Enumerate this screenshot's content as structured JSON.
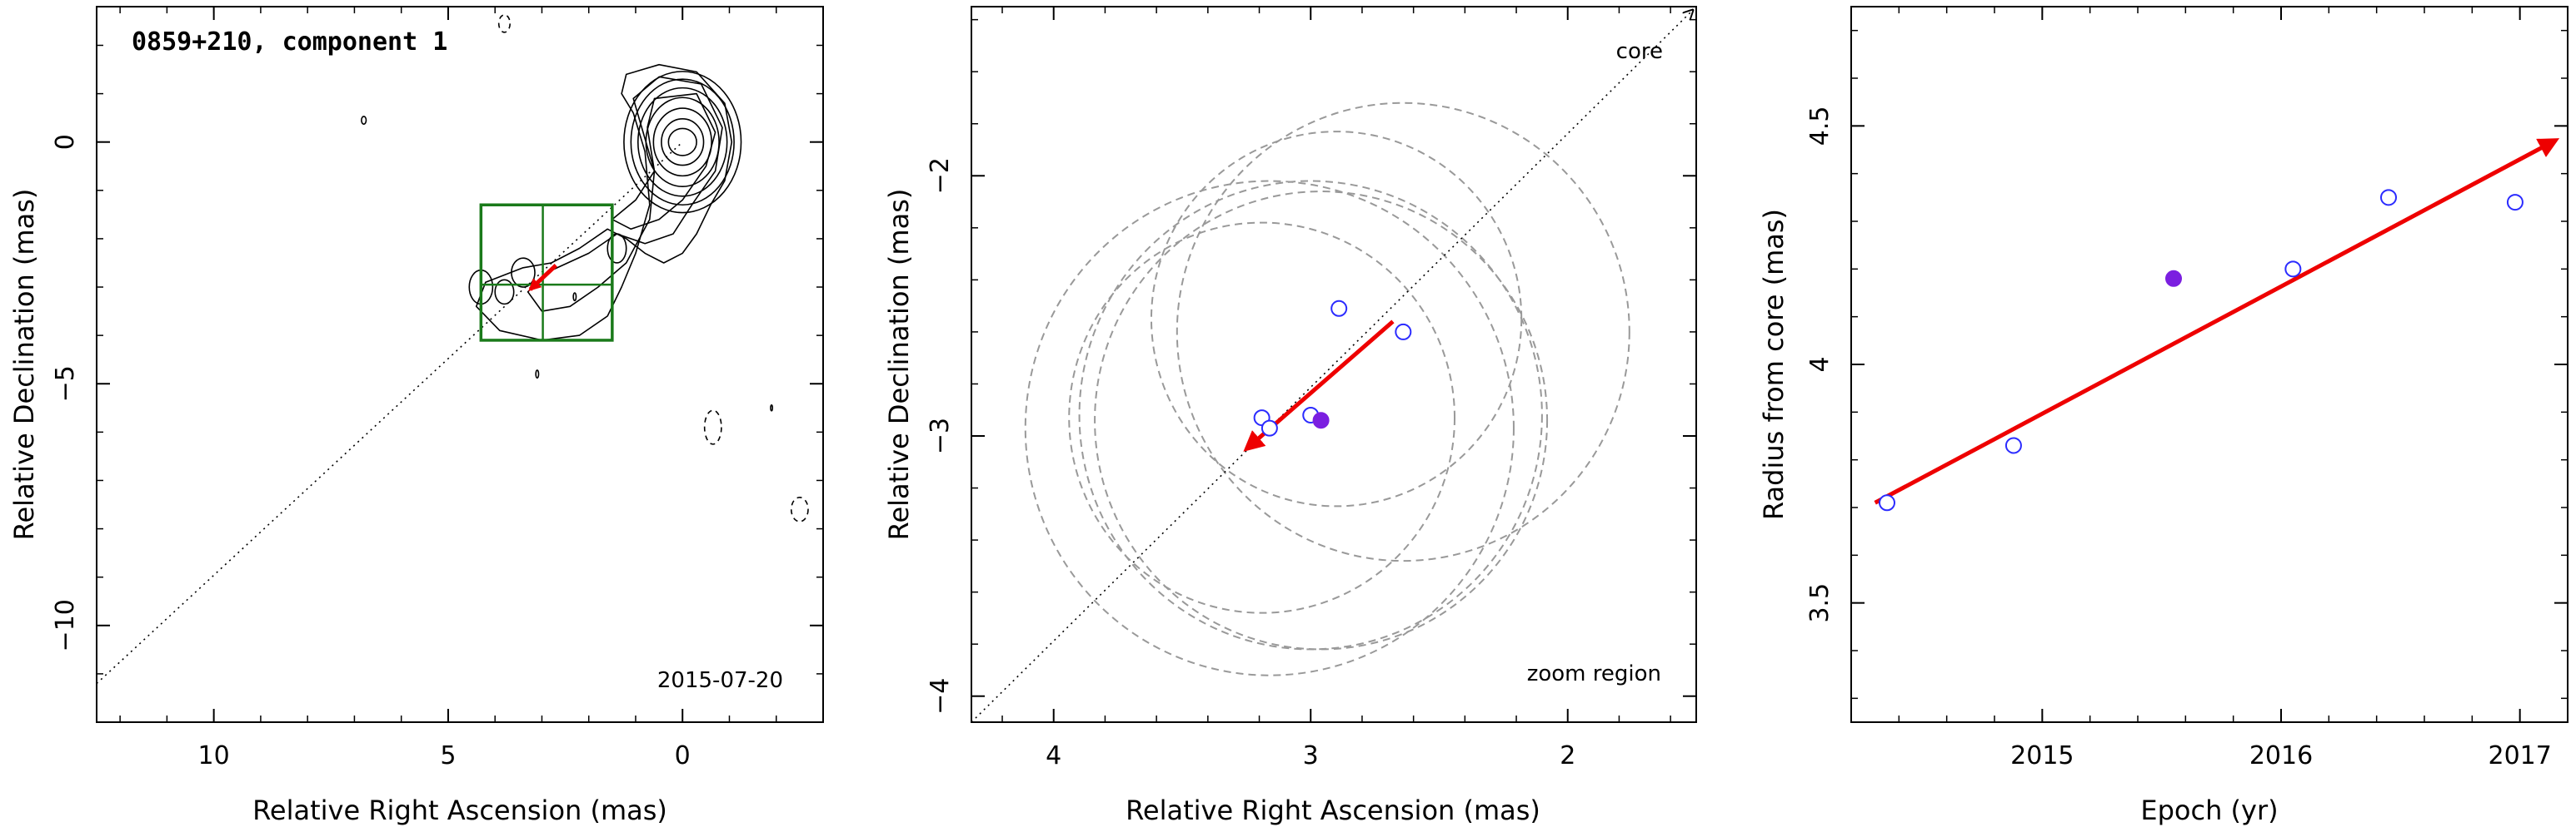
{
  "colors": {
    "axis": "#000000",
    "contour": "#000000",
    "zoom_box": "#1a7a1a",
    "arrow": "#ee0000",
    "epoch_open": "#2b2bff",
    "epoch_filled": "#7b1fe0",
    "circle": "#999999",
    "ridge": "#000000"
  },
  "chart_data": [
    {
      "type": "contour",
      "title": "0859+210, component 1",
      "annotation": "2015-07-20",
      "xlabel": "Relative Right Ascension (mas)",
      "ylabel": "Relative Declination (mas)",
      "xlim": [
        12.5,
        -3.0
      ],
      "ylim": [
        -12.0,
        2.8
      ],
      "x_ticks": [
        {
          "value": 10,
          "label": "10"
        },
        {
          "value": 5,
          "label": "5"
        },
        {
          "value": 0,
          "label": "0"
        }
      ],
      "y_ticks": [
        {
          "value": 0,
          "label": "0"
        },
        {
          "value": -5,
          "label": "−5"
        },
        {
          "value": -10,
          "label": "−10"
        }
      ],
      "core": [
        0,
        0
      ],
      "core_contours": [
        {
          "rx": 0.3,
          "ry": 0.28
        },
        {
          "rx": 0.45,
          "ry": 0.48
        },
        {
          "rx": 0.62,
          "ry": 0.7
        },
        {
          "rx": 0.78,
          "ry": 0.92
        },
        {
          "rx": 0.95,
          "ry": 1.12
        },
        {
          "rx": 1.1,
          "ry": 1.3
        },
        {
          "rx": 1.25,
          "ry": 1.46
        }
      ],
      "jet_contours": [
        [
          [
            1.05,
            0.6
          ],
          [
            1.3,
            1.0
          ],
          [
            1.2,
            1.4
          ],
          [
            0.5,
            1.6
          ],
          [
            -0.3,
            1.45
          ],
          [
            -0.9,
            0.8
          ],
          [
            -1.05,
            0.0
          ],
          [
            -0.9,
            -0.8
          ],
          [
            -0.6,
            -1.3
          ],
          [
            -0.3,
            -1.9
          ],
          [
            0.0,
            -2.3
          ],
          [
            0.4,
            -2.5
          ],
          [
            0.8,
            -2.3
          ],
          [
            1.2,
            -2.0
          ],
          [
            1.6,
            -1.8
          ],
          [
            2.2,
            -2.2
          ],
          [
            2.8,
            -2.5
          ],
          [
            3.4,
            -2.6
          ],
          [
            4.2,
            -2.9
          ],
          [
            4.4,
            -3.4
          ],
          [
            3.9,
            -3.9
          ],
          [
            3.0,
            -4.1
          ],
          [
            2.2,
            -4.0
          ],
          [
            1.6,
            -3.6
          ],
          [
            1.3,
            -3.0
          ],
          [
            1.0,
            -2.3
          ],
          [
            0.7,
            -1.3
          ],
          [
            0.8,
            -0.2
          ],
          [
            1.05,
            0.6
          ]
        ],
        [
          [
            0.9,
            0.4
          ],
          [
            1.05,
            0.9
          ],
          [
            0.5,
            1.35
          ],
          [
            -0.4,
            1.2
          ],
          [
            -0.85,
            0.3
          ],
          [
            -0.7,
            -0.6
          ],
          [
            -0.2,
            -1.3
          ],
          [
            0.2,
            -1.9
          ],
          [
            0.8,
            -2.1
          ],
          [
            1.4,
            -1.9
          ],
          [
            2.0,
            -2.3
          ],
          [
            2.9,
            -2.7
          ],
          [
            3.3,
            -3.1
          ],
          [
            3.0,
            -3.5
          ],
          [
            2.4,
            -3.4
          ],
          [
            1.8,
            -3.0
          ],
          [
            1.2,
            -2.5
          ],
          [
            0.7,
            -1.6
          ],
          [
            0.6,
            -0.6
          ],
          [
            0.9,
            0.4
          ]
        ],
        [
          [
            0.75,
            0.3
          ],
          [
            0.6,
            0.9
          ],
          [
            -0.3,
            1.0
          ],
          [
            -0.7,
            0.2
          ],
          [
            -0.5,
            -0.5
          ],
          [
            0.0,
            -1.2
          ],
          [
            0.5,
            -1.6
          ],
          [
            1.1,
            -1.8
          ],
          [
            1.5,
            -1.6
          ],
          [
            1.0,
            -1.2
          ],
          [
            0.6,
            -0.6
          ],
          [
            0.75,
            0.3
          ]
        ]
      ],
      "blobs": [
        {
          "x": 4.3,
          "y": -3.0,
          "rx": 0.25,
          "ry": 0.35,
          "dashed": false
        },
        {
          "x": 1.4,
          "y": -2.2,
          "rx": 0.2,
          "ry": 0.3,
          "dashed": false
        },
        {
          "x": 3.8,
          "y": -3.1,
          "rx": 0.2,
          "ry": 0.25,
          "dashed": false
        },
        {
          "x": 3.4,
          "y": -2.7,
          "rx": 0.25,
          "ry": 0.3,
          "dashed": false
        },
        {
          "x": 6.8,
          "y": 0.45,
          "rx": 0.05,
          "ry": 0.08,
          "dashed": false
        },
        {
          "x": 3.1,
          "y": -4.8,
          "rx": 0.03,
          "ry": 0.08,
          "dashed": false
        },
        {
          "x": 2.3,
          "y": -3.2,
          "rx": 0.03,
          "ry": 0.08,
          "dashed": false
        },
        {
          "x": 3.8,
          "y": 2.45,
          "rx": 0.12,
          "ry": 0.18,
          "dashed": true
        },
        {
          "x": -0.65,
          "y": -5.9,
          "rx": 0.18,
          "ry": 0.35,
          "dashed": true
        },
        {
          "x": -2.5,
          "y": -7.6,
          "rx": 0.18,
          "ry": 0.25,
          "dashed": true
        },
        {
          "x": -1.9,
          "y": -5.5,
          "rx": 0.02,
          "ry": 0.06,
          "dashed": false
        }
      ],
      "ridge_line": [
        [
          12.5,
          -11.2
        ],
        [
          0,
          0
        ]
      ],
      "zoom_box": {
        "x": [
          4.3,
          1.5
        ],
        "y": [
          -1.3,
          -4.1
        ]
      },
      "zoom_cross": {
        "x": 2.98,
        "y": -2.95
      },
      "arrow": {
        "from": [
          2.7,
          -2.55
        ],
        "to": [
          3.25,
          -3.05
        ]
      }
    },
    {
      "type": "scatter",
      "annotation": "zoom region",
      "core_label": "core",
      "xlabel": "Relative Right Ascension (mas)",
      "ylabel": "Relative Declination (mas)",
      "xlim": [
        4.32,
        1.5
      ],
      "ylim": [
        -4.1,
        -1.35
      ],
      "x_ticks": [
        {
          "value": 4,
          "label": "4"
        },
        {
          "value": 3,
          "label": "3"
        },
        {
          "value": 2,
          "label": "2"
        }
      ],
      "y_ticks": [
        {
          "value": -2,
          "label": "−2"
        },
        {
          "value": -3,
          "label": "−3"
        },
        {
          "value": -4,
          "label": "−4"
        }
      ],
      "points": [
        {
          "x": 3.19,
          "y": -2.93,
          "filled": false
        },
        {
          "x": 3.16,
          "y": -2.97,
          "filled": false
        },
        {
          "x": 2.89,
          "y": -2.51,
          "filled": false
        },
        {
          "x": 2.64,
          "y": -2.6,
          "filled": false
        },
        {
          "x": 3.0,
          "y": -2.92,
          "filled": false
        },
        {
          "x": 2.96,
          "y": -2.94,
          "filled": true
        }
      ],
      "circles": [
        {
          "x": 2.9,
          "y": -2.55,
          "r": 0.72
        },
        {
          "x": 2.64,
          "y": -2.6,
          "r": 0.88
        },
        {
          "x": 3.19,
          "y": -2.93,
          "r": 0.75
        },
        {
          "x": 3.16,
          "y": -2.97,
          "r": 0.95
        },
        {
          "x": 3.0,
          "y": -2.92,
          "r": 0.9
        },
        {
          "x": 2.96,
          "y": -2.94,
          "r": 0.88
        }
      ],
      "ridge_line": [
        [
          4.32,
          -4.1
        ],
        [
          1.5,
          -1.35
        ]
      ],
      "arrow": {
        "from": [
          2.68,
          -2.56
        ],
        "to": [
          3.25,
          -3.05
        ]
      }
    },
    {
      "type": "scatter",
      "xlabel": "Epoch (yr)",
      "ylabel": "Radius from core (mas)",
      "xlim": [
        2014.2,
        2017.2
      ],
      "ylim": [
        3.25,
        4.75
      ],
      "x_ticks": [
        {
          "value": 2015,
          "label": "2015"
        },
        {
          "value": 2016,
          "label": "2016"
        },
        {
          "value": 2017,
          "label": "2017"
        }
      ],
      "y_ticks": [
        {
          "value": 3.5,
          "label": "3.5"
        },
        {
          "value": 4,
          "label": "4"
        },
        {
          "value": 4.5,
          "label": "4.5"
        }
      ],
      "points": [
        {
          "x": 2014.35,
          "y": 3.71,
          "filled": false
        },
        {
          "x": 2014.88,
          "y": 3.83,
          "filled": false
        },
        {
          "x": 2015.55,
          "y": 4.18,
          "filled": true
        },
        {
          "x": 2016.05,
          "y": 4.2,
          "filled": false
        },
        {
          "x": 2016.45,
          "y": 4.35,
          "filled": false
        },
        {
          "x": 2016.98,
          "y": 4.34,
          "filled": false
        }
      ],
      "fit_arrow": {
        "from": [
          2014.3,
          3.71
        ],
        "to": [
          2017.15,
          4.47
        ]
      }
    }
  ]
}
